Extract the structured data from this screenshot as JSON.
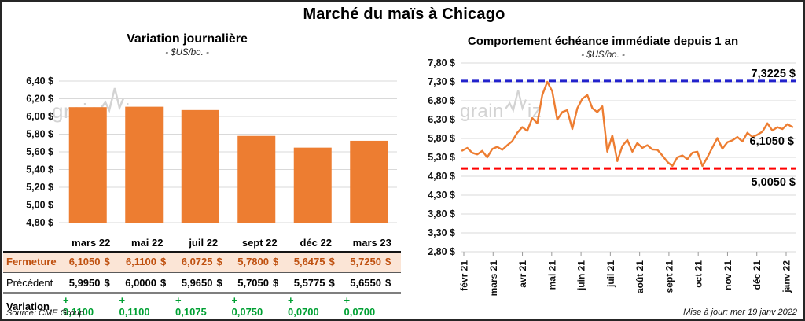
{
  "page": {
    "title": "Marché du maïs à Chicago",
    "source": "Source: CME Group",
    "updated": "Mise à jour: mer 19 janv 2022",
    "watermark": {
      "pre": "grain",
      "post": "iz"
    }
  },
  "chart_data": [
    {
      "type": "bar",
      "title": "Variation  journalière",
      "subtitle": "- $US/bo. -",
      "categories": [
        "mars 22",
        "mai 22",
        "juil 22",
        "sept 22",
        "déc 22",
        "mars 23"
      ],
      "values": [
        6.105,
        6.11,
        6.0725,
        5.78,
        5.6475,
        5.725
      ],
      "ylim": [
        4.8,
        6.4
      ],
      "ytick_labels": [
        "6,40 $",
        "6,20 $",
        "6,00 $",
        "5,80 $",
        "5,60 $",
        "5,40 $",
        "5,20 $",
        "5,00 $",
        "4,80 $"
      ],
      "bar_color": "#ED7D31",
      "grid_color": "#d9d9d9"
    },
    {
      "type": "line",
      "title": "Comportement  échéance immédiate depuis 1 an",
      "subtitle": "- $US/bo. -",
      "x_labels": [
        "févr 21",
        "mars 21",
        "avr 21",
        "mai 21",
        "juin 21",
        "juil 21",
        "août 21",
        "sept 21",
        "oct 21",
        "nov 21",
        "déc 21",
        "janv 22"
      ],
      "ylim": [
        2.8,
        7.8
      ],
      "ytick_labels": [
        "7,80 $",
        "7,30 $",
        "6,80 $",
        "6,30 $",
        "5,80 $",
        "5,30 $",
        "4,80 $",
        "4,30 $",
        "3,80 $",
        "3,30 $",
        "2,80 $"
      ],
      "line_color": "#ED7D31",
      "grid_color": "#d9d9d9",
      "high_line": {
        "value": 7.3225,
        "label": "7,3225 $",
        "color": "#2222CC"
      },
      "low_line": {
        "value": 5.005,
        "label": "5,0050 $",
        "color": "#FF0000"
      },
      "last_label": "6,1050 $",
      "values": [
        5.48,
        5.55,
        5.42,
        5.38,
        5.47,
        5.3,
        5.52,
        5.58,
        5.5,
        5.62,
        5.73,
        5.95,
        6.1,
        6.0,
        6.34,
        6.2,
        6.95,
        7.3,
        7.05,
        6.3,
        6.5,
        6.55,
        6.05,
        6.6,
        6.85,
        6.95,
        6.6,
        6.5,
        6.65,
        5.45,
        5.88,
        5.2,
        5.6,
        5.76,
        5.45,
        5.68,
        5.55,
        5.62,
        5.51,
        5.5,
        5.35,
        5.18,
        5.07,
        5.3,
        5.35,
        5.25,
        5.42,
        5.45,
        5.07,
        5.3,
        5.56,
        5.81,
        5.53,
        5.7,
        5.75,
        5.84,
        5.72,
        5.95,
        5.84,
        5.9,
        5.98,
        6.2,
        6.01,
        6.1,
        6.05,
        6.18,
        6.105
      ]
    }
  ],
  "table": {
    "columns": [
      "mars 22",
      "mai 22",
      "juil 22",
      "sept 22",
      "déc 22",
      "mars 23"
    ],
    "rows": [
      {
        "label": "Fermeture",
        "values": [
          "6,1050",
          "6,1100",
          "6,0725",
          "5,7800",
          "5,6475",
          "5,7250"
        ],
        "unit": "$",
        "color": "#BF500F",
        "bg": "#FBE5D6"
      },
      {
        "label": "Précédent",
        "values": [
          "5,9950",
          "6,0000",
          "5,9650",
          "5,7050",
          "5,5775",
          "5,6550"
        ],
        "unit": "$",
        "color": "#000000",
        "bg": ""
      },
      {
        "label": "Variation",
        "values": [
          "+ 0,1100",
          "+ 0,1100",
          "+ 0,1075",
          "+ 0,0750",
          "+ 0,0700",
          "+ 0,0700"
        ],
        "unit": "",
        "color": "#00A033",
        "bg": ""
      }
    ]
  }
}
